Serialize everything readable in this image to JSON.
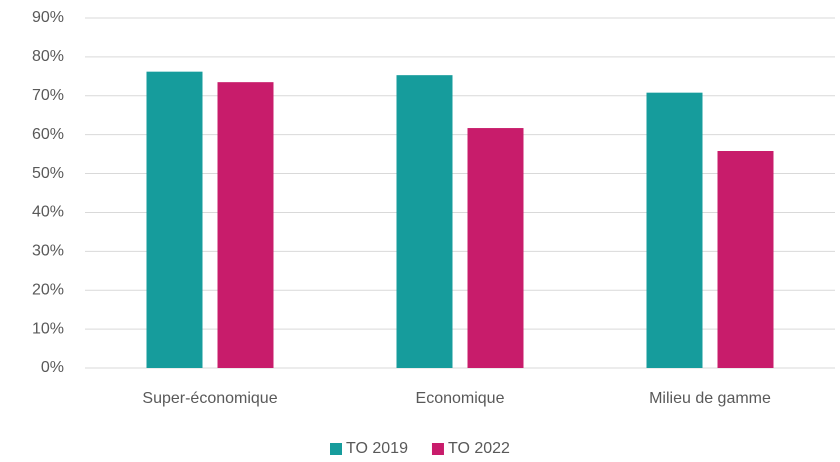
{
  "chart_data": {
    "type": "bar",
    "categories": [
      "Super-économique",
      "Economique",
      "Milieu de gamme"
    ],
    "series": [
      {
        "name": "TO 2019",
        "color": "#169c9c",
        "values": [
          76.2,
          75.3,
          70.8
        ]
      },
      {
        "name": "TO 2022",
        "color": "#c81c6b",
        "values": [
          73.5,
          61.7,
          55.8
        ]
      }
    ],
    "ylim": [
      0,
      90
    ],
    "yticks": [
      {
        "value": 0,
        "label": "0%"
      },
      {
        "value": 10,
        "label": "10%"
      },
      {
        "value": 20,
        "label": "20%"
      },
      {
        "value": 30,
        "label": "30%"
      },
      {
        "value": 40,
        "label": "40%"
      },
      {
        "value": 50,
        "label": "50%"
      },
      {
        "value": 60,
        "label": "60%"
      },
      {
        "value": 70,
        "label": "70%"
      },
      {
        "value": 80,
        "label": "80%"
      },
      {
        "value": 90,
        "label": "90%"
      }
    ],
    "grid": true,
    "legend": "bottom"
  }
}
